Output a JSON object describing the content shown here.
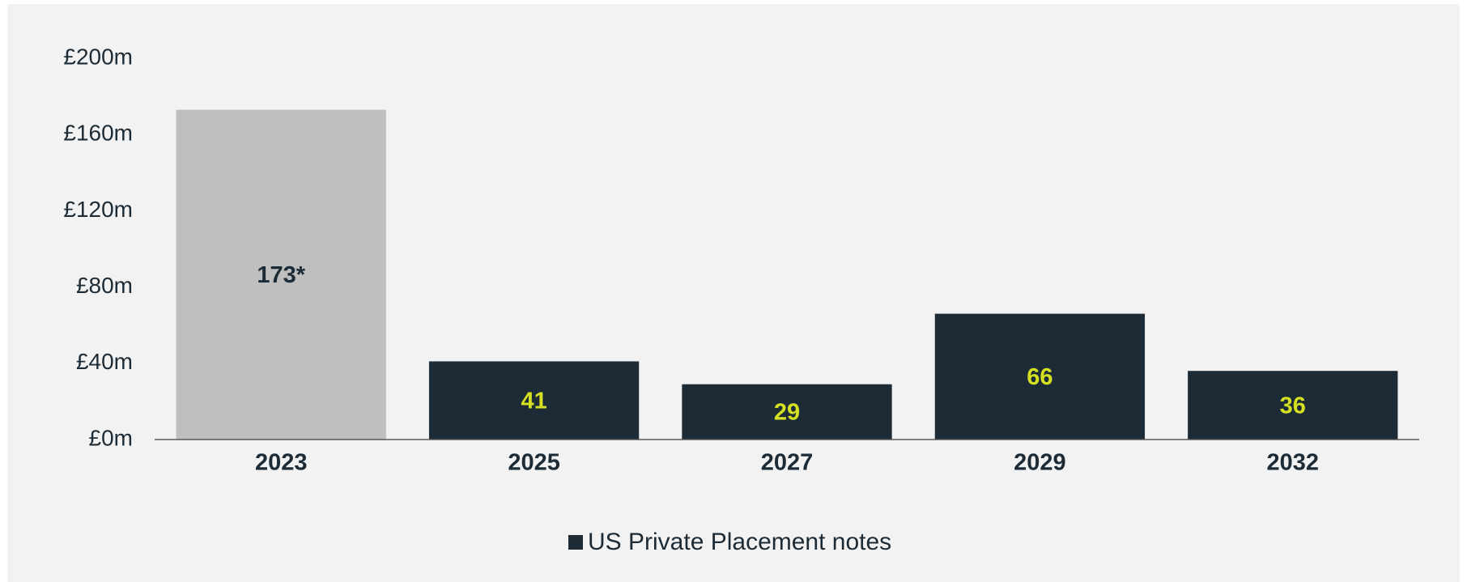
{
  "chart_data": {
    "type": "bar",
    "categories": [
      "2023",
      "2025",
      "2027",
      "2029",
      "2032"
    ],
    "series": [
      {
        "name": "US Private Placement notes",
        "color": "#1c2b36",
        "colors": [
          "#bfbfbf",
          "#1c2b36",
          "#1c2b36",
          "#1c2b36",
          "#1c2b36"
        ],
        "label_colors": [
          "#1c2b36",
          "#d4e021",
          "#d4e021",
          "#d4e021",
          "#d4e021"
        ],
        "values": [
          173,
          41,
          29,
          66,
          36
        ],
        "value_labels": [
          "173*",
          "41",
          "29",
          "66",
          "36"
        ]
      }
    ],
    "ylim": [
      0,
      200
    ],
    "yticks": [
      {
        "value": 0,
        "label": "£0m"
      },
      {
        "value": 40,
        "label": "£40m"
      },
      {
        "value": 80,
        "label": "£80m"
      },
      {
        "value": 120,
        "label": "£120m"
      },
      {
        "value": 160,
        "label": "£160m"
      },
      {
        "value": 200,
        "label": "£200m"
      }
    ],
    "grid": false,
    "legend": "bottom"
  }
}
